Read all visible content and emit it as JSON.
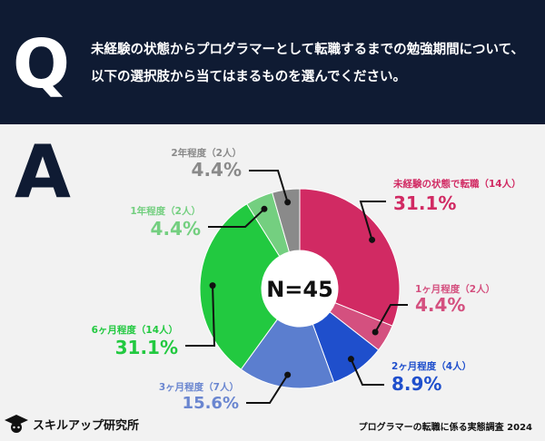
{
  "header": {
    "q_letter": "Q",
    "question_line1": "未経験の状態からプログラマーとして転職するまでの勉強期間について、",
    "question_line2": "以下の選択肢から当てはまるものを選んでください。"
  },
  "answer_letter": "A",
  "center_label": "N=45",
  "footer": {
    "logo_text": "スキルアップ研究所",
    "survey_title": "プログラマーの転職に係る実態調査 2024"
  },
  "colors": {
    "header_bg": "#0f1b33",
    "page_bg": "#f2f2f2",
    "leader": "#111111"
  },
  "chart_data": {
    "type": "pie",
    "style": "donut",
    "total_n": 45,
    "slices": [
      {
        "label": "未経験の状態で転職（14人）",
        "value": 31.1,
        "count": 14,
        "pct_text": "31.1%",
        "color": "#d12a63",
        "label_color": "#d12a63"
      },
      {
        "label": "1ヶ月程度（2人）",
        "value": 4.4,
        "count": 2,
        "pct_text": "4.4%",
        "color": "#d4507f",
        "label_color": "#d4507f"
      },
      {
        "label": "2ヶ月程度（4人）",
        "value": 8.9,
        "count": 4,
        "pct_text": "8.9%",
        "color": "#1f4fcc",
        "label_color": "#1f4fcc"
      },
      {
        "label": "3ヶ月程度（7人）",
        "value": 15.6,
        "count": 7,
        "pct_text": "15.6%",
        "color": "#5b7ecf",
        "label_color": "#6a86d0"
      },
      {
        "label": "6ヶ月程度（14人）",
        "value": 31.1,
        "count": 14,
        "pct_text": "31.1%",
        "color": "#22c940",
        "label_color": "#22c940"
      },
      {
        "label": "1年程度（2人）",
        "value": 4.4,
        "count": 2,
        "pct_text": "4.4%",
        "color": "#74cf80",
        "label_color": "#74cf80"
      },
      {
        "label": "2年程度（2人）",
        "value": 4.4,
        "count": 2,
        "pct_text": "4.4%",
        "color": "#8a8a8a",
        "label_color": "#8a8a8a"
      }
    ]
  }
}
